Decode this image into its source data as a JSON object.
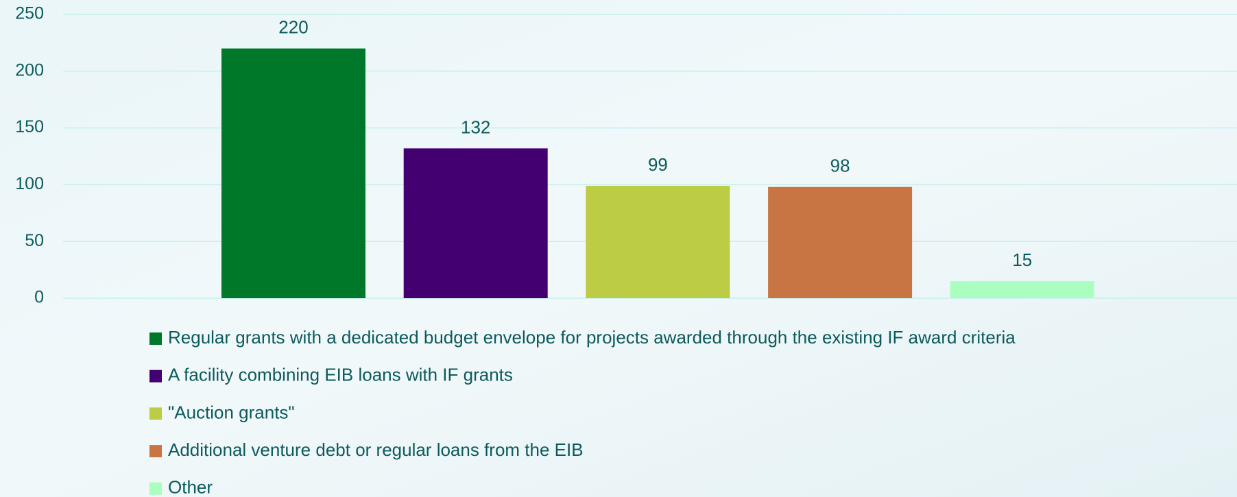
{
  "chart_data": {
    "type": "bar",
    "categories": [
      "Regular grants with a dedicated budget envelope for projects awarded through the existing IF award criteria",
      "A facility combining EIB loans with IF grants",
      "\"Auction grants\"",
      "Additional venture debt or regular loans from the EIB",
      "Other"
    ],
    "values": [
      220,
      132,
      99,
      98,
      15
    ],
    "colors": [
      "#00782a",
      "#420070",
      "#bccc44",
      "#c87543",
      "#aaffc0"
    ],
    "ylim": [
      0,
      250
    ],
    "yticks": [
      0,
      50,
      100,
      150,
      200,
      250
    ],
    "grid": true,
    "legend": "bottom"
  }
}
